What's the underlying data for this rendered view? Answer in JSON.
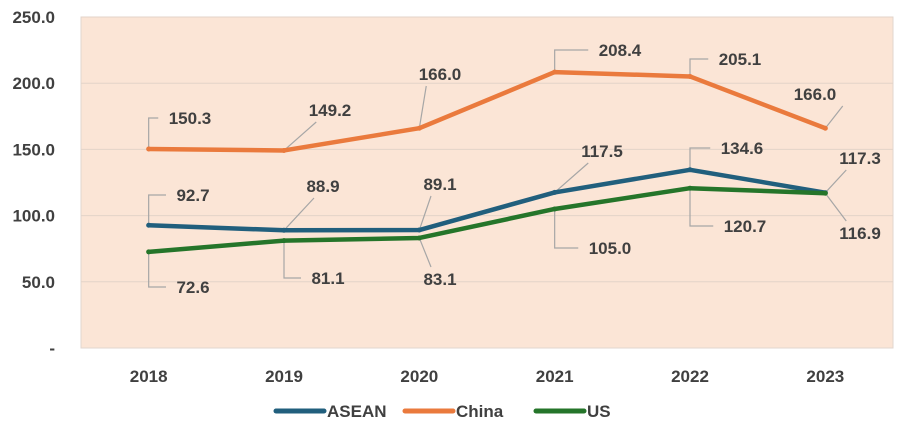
{
  "chart_data": {
    "type": "line",
    "categories": [
      "2018",
      "2019",
      "2020",
      "2021",
      "2022",
      "2023"
    ],
    "ylim": [
      0,
      250
    ],
    "yticks": [
      0,
      50,
      100,
      150,
      200,
      250
    ],
    "ytick_labels": [
      "-",
      "50.0",
      "100.0",
      "150.0",
      "200.0",
      "250.0"
    ],
    "grid": true,
    "legend": "bottom",
    "plot_background": "#fbe5d6",
    "series": [
      {
        "name": "ASEAN",
        "color": "#215f7d",
        "values": [
          92.7,
          88.9,
          89.1,
          117.5,
          134.6,
          117.3
        ],
        "labels": [
          "92.7",
          "88.9",
          "89.1",
          "117.5",
          "134.6",
          "117.3"
        ]
      },
      {
        "name": "China",
        "color": "#ea7a3d",
        "values": [
          150.3,
          149.2,
          166.0,
          208.4,
          205.1,
          166.0
        ],
        "labels": [
          "150.3",
          "149.2",
          "166.0",
          "208.4",
          "205.1",
          "166.0"
        ]
      },
      {
        "name": "US",
        "color": "#25752a",
        "values": [
          72.6,
          81.1,
          83.1,
          105.0,
          120.7,
          116.9
        ],
        "labels": [
          "72.6",
          "81.1",
          "83.1",
          "105.0",
          "120.7",
          "116.9"
        ]
      }
    ]
  }
}
